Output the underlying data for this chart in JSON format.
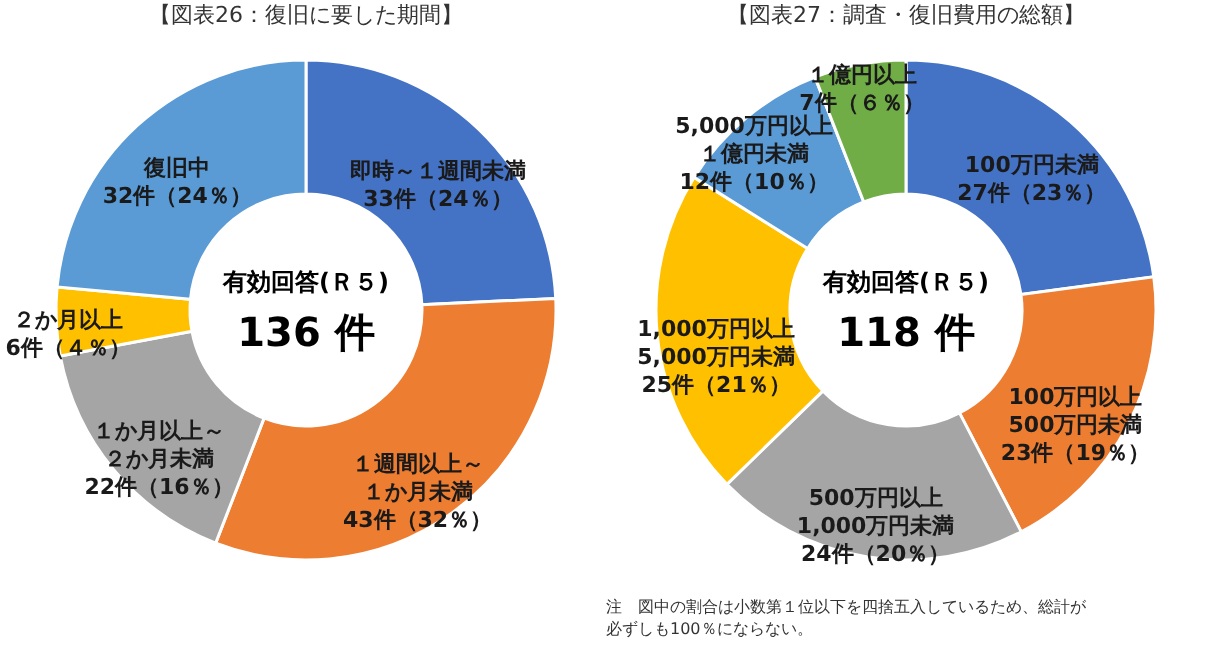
{
  "chart_data": [
    {
      "type": "donut",
      "title": "【図表26：復旧に要した期間】",
      "categories": [
        "即時～１週間未満",
        "１週間以上～１か月未満",
        "１か月以上～２か月未満",
        "２か月以上",
        "復旧中"
      ],
      "values": [
        33,
        43,
        22,
        6,
        32
      ],
      "value_labels": [
        "33件（24％）",
        "43件（32％）",
        "22件（16％）",
        "6件（４％）",
        "32件（24％）"
      ],
      "colors": [
        "#4472c4",
        "#ed7d31",
        "#a5a5a5",
        "#ffc000",
        "#5b9bd5"
      ],
      "annotations": [
        "有効回答(Ｒ５)",
        "136 件"
      ]
    },
    {
      "type": "donut",
      "title": "【図表27：調査・復旧費用の総額】",
      "categories": [
        "100万円未満",
        "100万円以上500万円未満",
        "500万円以上1,000万円未満",
        "1,000万円以上5,000万円未満",
        "5,000万円以上１億円未満",
        "１億円以上"
      ],
      "values": [
        27,
        23,
        24,
        25,
        12,
        7
      ],
      "value_labels": [
        "27件（23％）",
        "23件（19％）",
        "24件（20％）",
        "25件（21％）",
        "12件（10％）",
        "7件（６％）"
      ],
      "colors": [
        "#4472c4",
        "#ed7d31",
        "#a5a5a5",
        "#ffc000",
        "#5b9bd5",
        "#70ad47"
      ],
      "annotations": [
        "有効回答(Ｒ５)",
        "118 件",
        "注　図中の割合は小数第１位以下を四捨五入しているため、総計が必ずしも100％にならない。"
      ]
    }
  ]
}
